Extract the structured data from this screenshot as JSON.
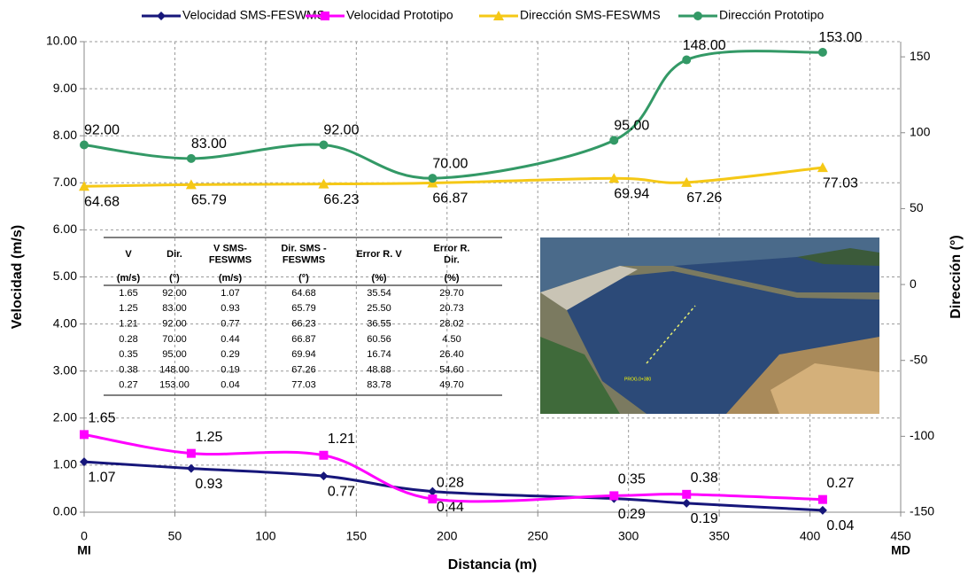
{
  "chart_data": {
    "type": "line",
    "smooth": true,
    "legend": "top",
    "grid": true,
    "xlabel": "Distancia (m)",
    "ylabel": "Velocidad (m/s)",
    "y2label": "Dirección (°)",
    "x_end_labels": [
      "MI",
      "MD"
    ],
    "xlim": [
      0,
      450
    ],
    "xticks": [
      0,
      50,
      100,
      150,
      200,
      250,
      300,
      350,
      400,
      450
    ],
    "ylim": [
      0,
      10
    ],
    "yticks": [
      {
        "value": 0,
        "label": "0.00"
      },
      {
        "value": 1,
        "label": "1.00"
      },
      {
        "value": 2,
        "label": "2.00"
      },
      {
        "value": 3,
        "label": "3.00"
      },
      {
        "value": 4,
        "label": "4.00"
      },
      {
        "value": 5,
        "label": "5.00"
      },
      {
        "value": 6,
        "label": "6.00"
      },
      {
        "value": 7,
        "label": "7.00"
      },
      {
        "value": 8,
        "label": "8.00"
      },
      {
        "value": 9,
        "label": "9.00"
      },
      {
        "value": 10,
        "label": "10.00"
      }
    ],
    "y2lim": [
      -150,
      160
    ],
    "y2ticks": [
      -150,
      -100,
      -50,
      0,
      50,
      100,
      150
    ],
    "x": [
      0,
      59,
      132,
      192,
      292,
      332,
      407
    ],
    "series": [
      {
        "name": "Velocidad SMS-FESWMS",
        "color": "#16167a",
        "marker": "diamond",
        "values": [
          1.07,
          0.93,
          0.77,
          0.44,
          0.29,
          0.19,
          0.04
        ],
        "value_labels": [
          "1.07",
          "0.93",
          "0.77",
          "0.44",
          "0.29",
          "0.19",
          "0.04"
        ]
      },
      {
        "name": "Velocidad Prototipo",
        "color": "#ff00ff",
        "marker": "square",
        "values": [
          1.65,
          1.25,
          1.21,
          0.28,
          0.35,
          0.38,
          0.27
        ],
        "value_labels": [
          "1.65",
          "1.25",
          "1.21",
          "0.28",
          "0.35",
          "0.38",
          "0.27"
        ]
      },
      {
        "name": "Dirección SMS-FESWMS",
        "color": "#f5c816",
        "marker": "triangle",
        "axis": "y2",
        "values": [
          64.68,
          65.79,
          66.23,
          66.87,
          69.94,
          67.26,
          77.03
        ],
        "value_labels": [
          "64.68",
          "65.79",
          "66.23",
          "66.87",
          "69.94",
          "67.26",
          "77.03"
        ]
      },
      {
        "name": "Dirección Prototipo",
        "color": "#339966",
        "marker": "circle",
        "axis": "y2",
        "values": [
          92,
          83,
          92,
          70,
          95,
          148,
          153
        ],
        "value_labels": [
          "92.00",
          "83.00",
          "92.00",
          "70.00",
          "95.00",
          "148.00",
          "153.00"
        ]
      }
    ]
  },
  "table": {
    "header": [
      [
        "V"
      ],
      [
        "Dir."
      ],
      [
        "V SMS-",
        "FESWMS"
      ],
      [
        "Dir. SMS -",
        "FESWMS"
      ],
      [
        "Error R. V"
      ],
      [
        "Error R.",
        "Dir."
      ]
    ],
    "units": [
      "(m/s)",
      "(°)",
      "(m/s)",
      "(°)",
      "(%)",
      "(%)"
    ],
    "rows": [
      [
        "1.65",
        "92.00",
        "1.07",
        "64.68",
        "35.54",
        "29.70"
      ],
      [
        "1.25",
        "83.00",
        "0.93",
        "65.79",
        "25.50",
        "20.73"
      ],
      [
        "1.21",
        "92.00",
        "0.77",
        "66.23",
        "36.55",
        "28.02"
      ],
      [
        "0.28",
        "70.00",
        "0.44",
        "66.87",
        "60.56",
        "4.50"
      ],
      [
        "0.35",
        "95.00",
        "0.29",
        "69.94",
        "16.74",
        "26.40"
      ],
      [
        "0.38",
        "148.00",
        "0.19",
        "67.26",
        "48.88",
        "54.60"
      ],
      [
        "0.27",
        "153.00",
        "0.04",
        "77.03",
        "83.78",
        "49.70"
      ]
    ]
  },
  "photo": {
    "caption": "PROG.0+380"
  }
}
